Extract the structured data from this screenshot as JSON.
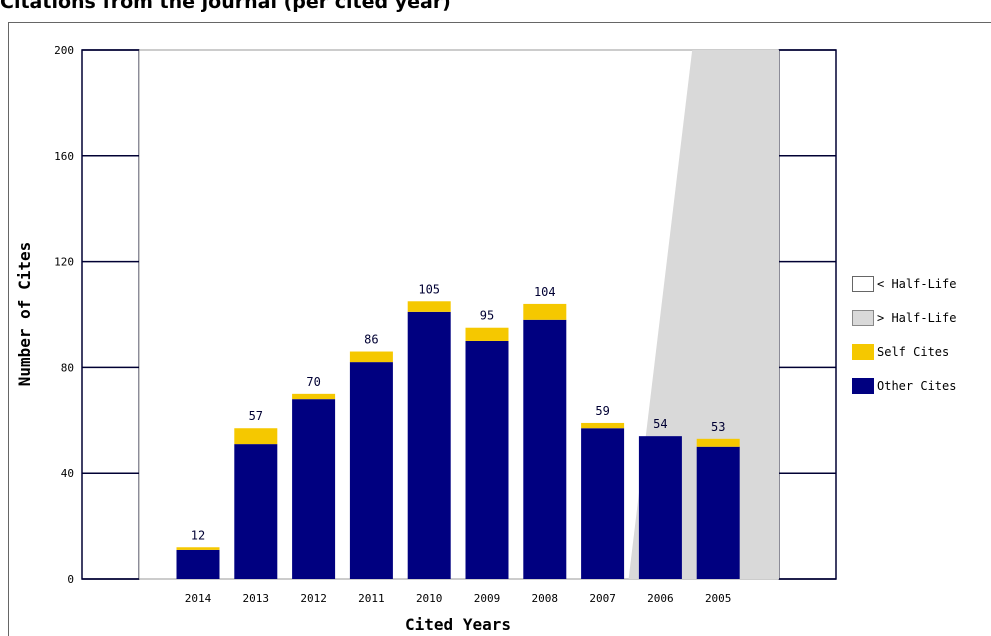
{
  "title": "Citations from the journal (per cited year)",
  "colors": {
    "other": "#000080",
    "self": "#f5c800",
    "below_half_life": "#ffffff",
    "above_half_life": "#d9d9d9",
    "axis": "#000033"
  },
  "chart_data": {
    "type": "bar",
    "stacked": true,
    "categories": [
      "2014",
      "2013",
      "2012",
      "2011",
      "2010",
      "2009",
      "2008",
      "2007",
      "2006",
      "2005"
    ],
    "series": [
      {
        "name": "Other Cites",
        "values": [
          11,
          51,
          68,
          82,
          101,
          90,
          98,
          57,
          54,
          50
        ]
      },
      {
        "name": "Self Cites",
        "values": [
          1,
          6,
          2,
          4,
          4,
          5,
          6,
          2,
          0,
          3
        ]
      }
    ],
    "totals": [
      12,
      57,
      70,
      86,
      105,
      95,
      104,
      59,
      54,
      53
    ],
    "xlabel": "Cited Years",
    "ylabel": "Number of Cites",
    "ylim": [
      0,
      200
    ],
    "yticks": [
      0,
      40,
      80,
      120,
      160,
      200
    ],
    "half_life_region": {
      "below_label": "< Half-Life",
      "above_label": "> Half-Life",
      "boundary_index_bottom": 7.45,
      "boundary_index_top": 8.55
    },
    "legend": {
      "position": "right",
      "entries": [
        "< Half-Life",
        "> Half-Life",
        "Self Cites",
        "Other Cites"
      ]
    },
    "grid": false
  }
}
